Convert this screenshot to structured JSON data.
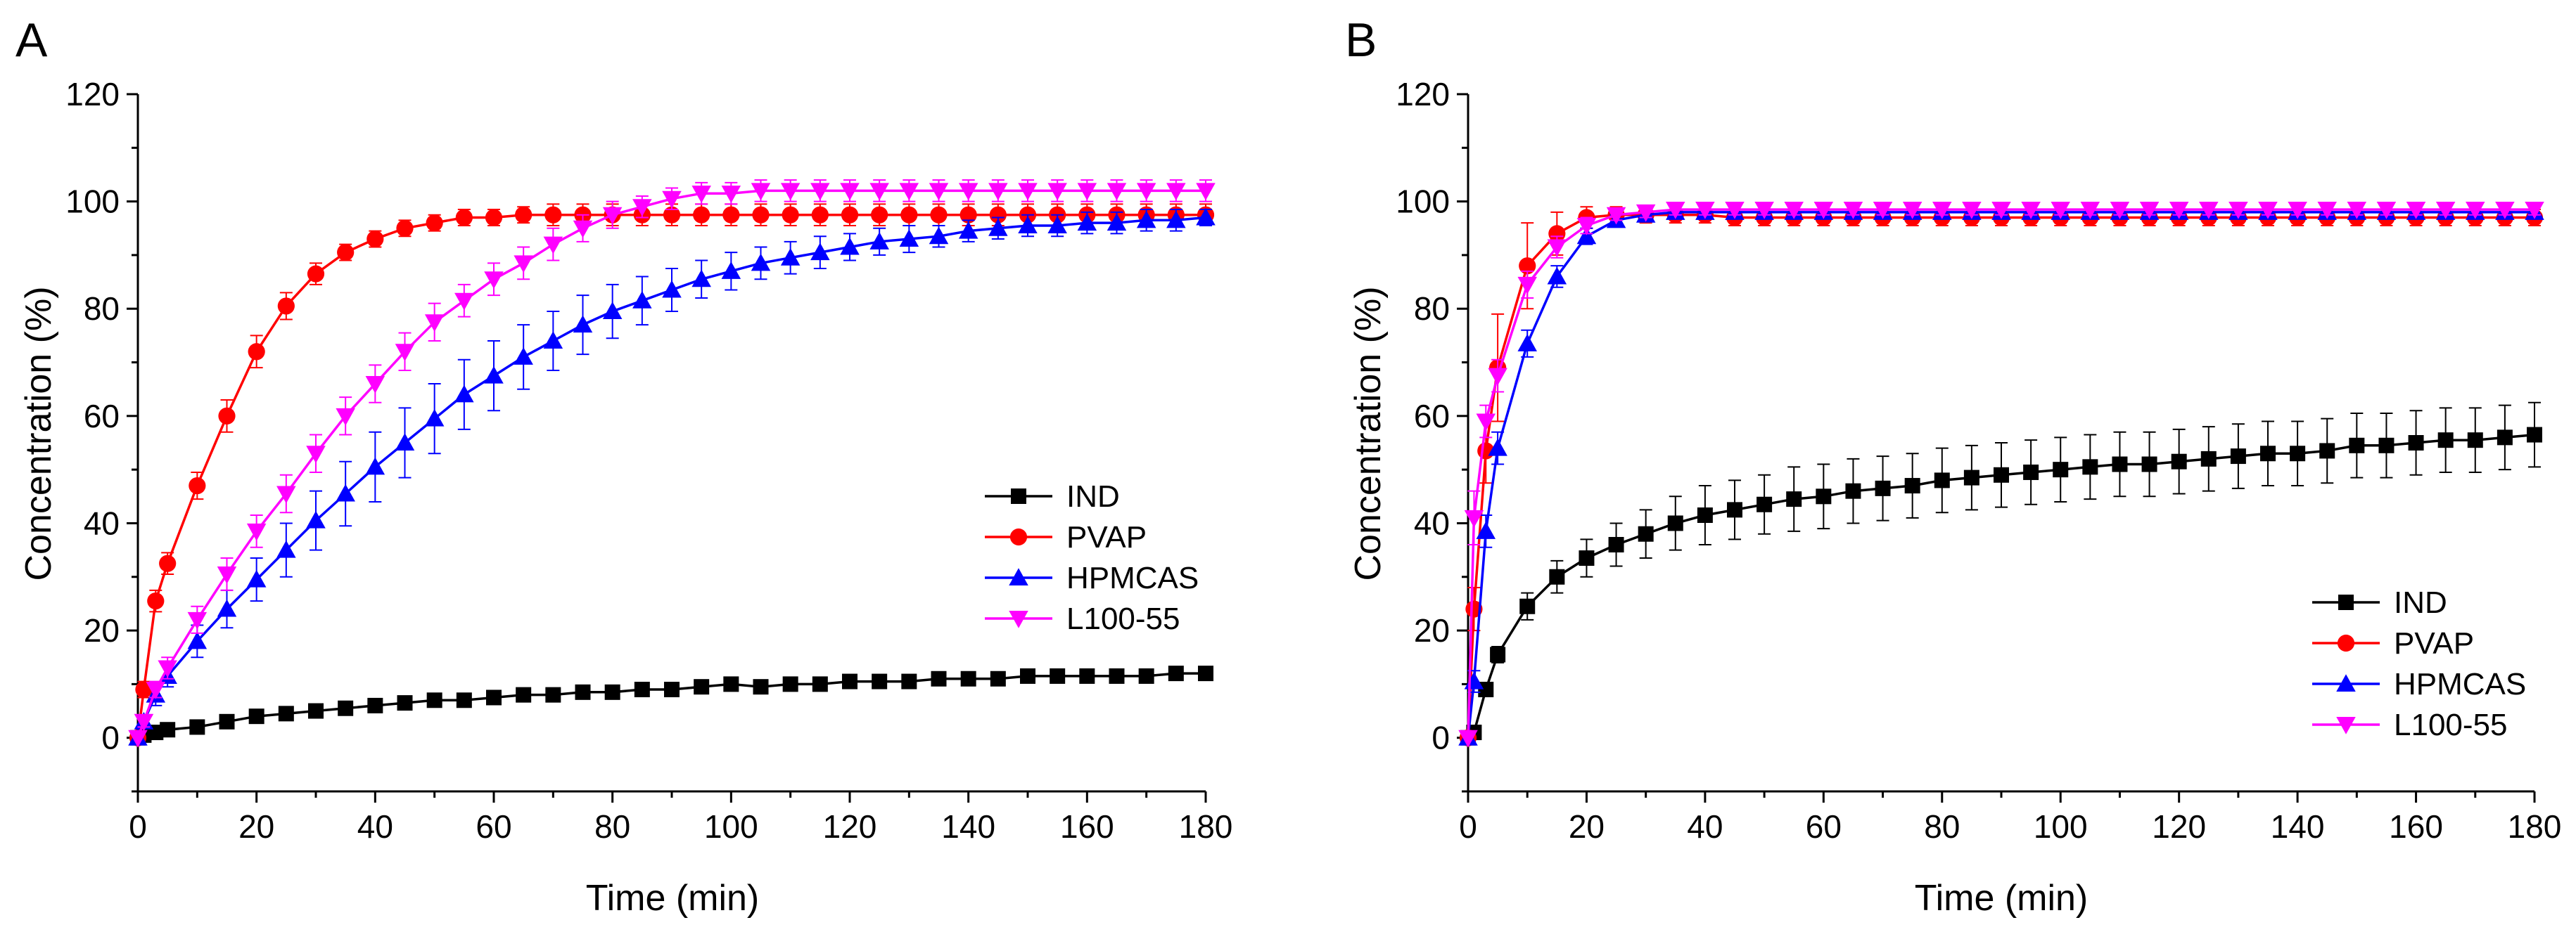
{
  "chart_data": [
    {
      "type": "line",
      "panel": "A",
      "title": "",
      "xlabel": "Time (min)",
      "ylabel": "Concentration (%)",
      "xlim": [
        0,
        180
      ],
      "ylim": [
        -10,
        120
      ],
      "xticks": [
        0,
        20,
        40,
        60,
        80,
        100,
        120,
        140,
        160,
        180
      ],
      "xtick_labels": [
        "0",
        "20",
        "40",
        "60",
        "80",
        "100",
        "120",
        "140",
        "160",
        "180"
      ],
      "yticks": [
        0,
        20,
        40,
        60,
        80,
        100,
        120
      ],
      "ytick_labels": [
        "0",
        "20",
        "40",
        "60",
        "80",
        "100",
        "120"
      ],
      "grid": false,
      "legend_position": "lower-right",
      "series": [
        {
          "name": "IND",
          "color": "#000000",
          "marker": "square",
          "x": [
            0,
            1,
            3,
            5,
            10,
            15,
            20,
            25,
            30,
            35,
            40,
            45,
            50,
            55,
            60,
            65,
            70,
            75,
            80,
            85,
            90,
            95,
            100,
            105,
            110,
            115,
            120,
            125,
            130,
            135,
            140,
            145,
            150,
            155,
            160,
            165,
            170,
            175,
            180
          ],
          "y": [
            0,
            0.5,
            1,
            1.5,
            2,
            3,
            4,
            4.5,
            5,
            5.5,
            6,
            6.5,
            7,
            7,
            7.5,
            8,
            8,
            8.5,
            8.5,
            9,
            9,
            9.5,
            10,
            9.5,
            10,
            10,
            10.5,
            10.5,
            10.5,
            11,
            11,
            11,
            11.5,
            11.5,
            11.5,
            11.5,
            11.5,
            12,
            12
          ],
          "err": [
            0,
            0.3,
            0.4,
            0.5,
            0.5,
            0.6,
            0.6,
            0.6,
            0.7,
            0.7,
            0.7,
            0.7,
            0.7,
            0.7,
            0.7,
            0.8,
            0.8,
            0.8,
            0.8,
            0.8,
            0.8,
            0.8,
            0.8,
            0.8,
            0.8,
            0.8,
            0.8,
            0.8,
            0.8,
            0.8,
            0.8,
            0.8,
            0.8,
            0.8,
            0.8,
            0.8,
            0.8,
            0.8,
            0.8
          ]
        },
        {
          "name": "PVAP",
          "color": "#ff0000",
          "marker": "circle",
          "x": [
            0,
            1,
            3,
            5,
            10,
            15,
            20,
            25,
            30,
            35,
            40,
            45,
            50,
            55,
            60,
            65,
            70,
            75,
            80,
            85,
            90,
            95,
            100,
            105,
            110,
            115,
            120,
            125,
            130,
            135,
            140,
            145,
            150,
            155,
            160,
            165,
            170,
            175,
            180
          ],
          "y": [
            0,
            9,
            25.5,
            32.5,
            47,
            60,
            72,
            80.5,
            86.5,
            90.5,
            93,
            95,
            96,
            97,
            97,
            97.5,
            97.5,
            97.5,
            97.5,
            97.5,
            97.5,
            97.5,
            97.5,
            97.5,
            97.5,
            97.5,
            97.5,
            97.5,
            97.5,
            97.5,
            97.5,
            97.5,
            97.5,
            97.5,
            97.5,
            97.5,
            97.5,
            97.5,
            97.5
          ],
          "err": [
            0,
            1.5,
            2,
            2,
            2.5,
            3,
            3,
            2.5,
            2,
            1.5,
            1.5,
            1.5,
            1.5,
            1.5,
            1.5,
            1.5,
            2,
            2,
            2,
            2,
            2,
            2,
            2,
            2,
            2,
            2,
            2,
            2,
            2,
            2,
            2,
            2,
            2,
            2,
            2,
            2,
            2,
            2,
            2
          ]
        },
        {
          "name": "HPMCAS",
          "color": "#0000ff",
          "marker": "triangle-up",
          "x": [
            0,
            1,
            3,
            5,
            10,
            15,
            20,
            25,
            30,
            35,
            40,
            45,
            50,
            55,
            60,
            65,
            70,
            75,
            80,
            85,
            90,
            95,
            100,
            105,
            110,
            115,
            120,
            125,
            130,
            135,
            140,
            145,
            150,
            155,
            160,
            165,
            170,
            175,
            180
          ],
          "y": [
            0,
            3,
            8,
            11.5,
            18,
            24,
            29.5,
            35,
            40.5,
            45.5,
            50.5,
            55,
            59.5,
            64,
            67.5,
            71,
            74,
            77,
            79.5,
            81.5,
            83.5,
            85.5,
            87,
            88.5,
            89.5,
            90.5,
            91.5,
            92.5,
            93,
            93.5,
            94.5,
            95,
            95.5,
            95.5,
            96,
            96,
            96.5,
            96.5,
            97
          ],
          "err": [
            0,
            1,
            2,
            2,
            3,
            3.5,
            4,
            5,
            5.5,
            6,
            6.5,
            6.5,
            6.5,
            6.5,
            6.5,
            6,
            5.5,
            5.5,
            5,
            4.5,
            4,
            3.5,
            3.5,
            3,
            3,
            3,
            2.5,
            2.5,
            2.5,
            2,
            2,
            2,
            2,
            2,
            2,
            2,
            2,
            2,
            1.5
          ]
        },
        {
          "name": "L100-55",
          "color": "#ff00ff",
          "marker": "triangle-down",
          "x": [
            0,
            1,
            3,
            5,
            10,
            15,
            20,
            25,
            30,
            35,
            40,
            45,
            50,
            55,
            60,
            65,
            70,
            75,
            80,
            85,
            90,
            95,
            100,
            105,
            110,
            115,
            120,
            125,
            130,
            135,
            140,
            145,
            150,
            155,
            160,
            165,
            170,
            175,
            180
          ],
          "y": [
            0,
            3,
            9,
            13,
            22,
            30.5,
            38.5,
            45.5,
            53,
            60,
            66,
            72,
            77.5,
            81.5,
            85.5,
            88.5,
            92,
            95,
            97.5,
            99,
            100.5,
            101.5,
            101.5,
            102,
            102,
            102,
            102,
            102,
            102,
            102,
            102,
            102,
            102,
            102,
            102,
            102,
            102,
            102,
            102
          ],
          "err": [
            0,
            1,
            1.5,
            2,
            2.5,
            3,
            3,
            3.5,
            3.5,
            3.5,
            3.5,
            3.5,
            3.5,
            3,
            3,
            3,
            3,
            2.5,
            2.5,
            2,
            2,
            2,
            2,
            2,
            2,
            2,
            2,
            2,
            2,
            2,
            2,
            2,
            2,
            2,
            2,
            2,
            2,
            2,
            2
          ]
        }
      ]
    },
    {
      "type": "line",
      "panel": "B",
      "title": "",
      "xlabel": "Time (min)",
      "ylabel": "Concentration (%)",
      "xlim": [
        0,
        180
      ],
      "ylim": [
        -10,
        120
      ],
      "xticks": [
        0,
        20,
        40,
        60,
        80,
        100,
        120,
        140,
        160,
        180
      ],
      "xtick_labels": [
        "0",
        "20",
        "40",
        "60",
        "80",
        "100",
        "120",
        "140",
        "160",
        "180"
      ],
      "yticks": [
        0,
        20,
        40,
        60,
        80,
        100,
        120
      ],
      "ytick_labels": [
        "0",
        "20",
        "40",
        "60",
        "80",
        "100",
        "120"
      ],
      "grid": false,
      "legend_position": "lower-right",
      "series": [
        {
          "name": "IND",
          "color": "#000000",
          "marker": "square",
          "x": [
            0,
            1,
            3,
            5,
            10,
            15,
            20,
            25,
            30,
            35,
            40,
            45,
            50,
            55,
            60,
            65,
            70,
            75,
            80,
            85,
            90,
            95,
            100,
            105,
            110,
            115,
            120,
            125,
            130,
            135,
            140,
            145,
            150,
            155,
            160,
            165,
            170,
            175,
            180
          ],
          "y": [
            0,
            1,
            9,
            15.5,
            24.5,
            30,
            33.5,
            36,
            38,
            40,
            41.5,
            42.5,
            43.5,
            44.5,
            45,
            46,
            46.5,
            47,
            48,
            48.5,
            49,
            49.5,
            50,
            50.5,
            51,
            51,
            51.5,
            52,
            52.5,
            53,
            53,
            53.5,
            54.5,
            54.5,
            55,
            55.5,
            55.5,
            56,
            56.5
          ],
          "err": [
            0,
            0.5,
            1,
            1.5,
            2.5,
            3,
            3.5,
            4,
            4.5,
            5,
            5.5,
            5.5,
            5.5,
            6,
            6,
            6,
            6,
            6,
            6,
            6,
            6,
            6,
            6,
            6,
            6,
            6,
            6,
            6,
            6,
            6,
            6,
            6,
            6,
            6,
            6,
            6,
            6,
            6,
            6
          ]
        },
        {
          "name": "PVAP",
          "color": "#ff0000",
          "marker": "circle",
          "x": [
            0,
            1,
            3,
            5,
            10,
            15,
            20,
            25,
            30,
            35,
            40,
            45,
            50,
            55,
            60,
            65,
            70,
            75,
            80,
            85,
            90,
            95,
            100,
            105,
            110,
            115,
            120,
            125,
            130,
            135,
            140,
            145,
            150,
            155,
            160,
            165,
            170,
            175,
            180
          ],
          "y": [
            0,
            24,
            53.5,
            69,
            88,
            94,
            97,
            97.5,
            97.5,
            97.5,
            97.5,
            97,
            97,
            97,
            97,
            97,
            97,
            97,
            97,
            97,
            97,
            97,
            97,
            97,
            97,
            97,
            97,
            97,
            97,
            97,
            97,
            97,
            97,
            97,
            97,
            97,
            97,
            97,
            97
          ],
          "err": [
            0,
            4,
            6,
            10,
            8,
            4,
            2,
            1.5,
            1.5,
            1.5,
            1.5,
            1.5,
            1.5,
            1.5,
            1.5,
            1.5,
            1.5,
            1.5,
            1.5,
            1.5,
            1.5,
            1.5,
            1.5,
            1.5,
            1.5,
            1.5,
            1.5,
            1.5,
            1.5,
            1.5,
            1.5,
            1.5,
            1.5,
            1.5,
            1.5,
            1.5,
            1.5,
            1.5,
            1.5
          ]
        },
        {
          "name": "HPMCAS",
          "color": "#0000ff",
          "marker": "triangle-up",
          "x": [
            0,
            1,
            3,
            5,
            10,
            15,
            20,
            25,
            30,
            35,
            40,
            45,
            50,
            55,
            60,
            65,
            70,
            75,
            80,
            85,
            90,
            95,
            100,
            105,
            110,
            115,
            120,
            125,
            130,
            135,
            140,
            145,
            150,
            155,
            160,
            165,
            170,
            175,
            180
          ],
          "y": [
            0,
            10.5,
            38.5,
            54,
            73.5,
            86,
            93.5,
            96.5,
            97.5,
            98,
            98,
            98,
            98,
            98,
            98,
            98,
            98,
            98,
            98,
            98,
            98,
            98,
            98,
            98,
            98,
            98,
            98,
            98,
            98,
            98,
            98,
            98,
            98,
            98,
            98,
            98,
            98,
            98,
            98
          ],
          "err": [
            0,
            2,
            3,
            3,
            2.5,
            2,
            1.5,
            1,
            1,
            1,
            1,
            1,
            1,
            1,
            1,
            1,
            1,
            1,
            1,
            1,
            1,
            1,
            1,
            1,
            1,
            1,
            1,
            1,
            1,
            1,
            1,
            1,
            1,
            1,
            1,
            1,
            1,
            1,
            1
          ]
        },
        {
          "name": "L100-55",
          "color": "#ff00ff",
          "marker": "triangle-down",
          "x": [
            0,
            1,
            3,
            5,
            10,
            15,
            20,
            25,
            30,
            35,
            40,
            45,
            50,
            55,
            60,
            65,
            70,
            75,
            80,
            85,
            90,
            95,
            100,
            105,
            110,
            115,
            120,
            125,
            130,
            135,
            140,
            145,
            150,
            155,
            160,
            165,
            170,
            175,
            180
          ],
          "y": [
            0,
            41,
            59,
            67.5,
            84.5,
            91.5,
            95.5,
            97.5,
            98,
            98.5,
            98.5,
            98.5,
            98.5,
            98.5,
            98.5,
            98.5,
            98.5,
            98.5,
            98.5,
            98.5,
            98.5,
            98.5,
            98.5,
            98.5,
            98.5,
            98.5,
            98.5,
            98.5,
            98.5,
            98.5,
            98.5,
            98.5,
            98.5,
            98.5,
            98.5,
            98.5,
            98.5,
            98.5,
            98.5
          ],
          "err": [
            0,
            5,
            3,
            3,
            2.5,
            2,
            1.5,
            1,
            1,
            1,
            1,
            1,
            1,
            1,
            1,
            1,
            1,
            1,
            1,
            1,
            1,
            1,
            1,
            1,
            1,
            1,
            1,
            1,
            1,
            1,
            1,
            1,
            1,
            1,
            1,
            1,
            1,
            1,
            1
          ]
        }
      ]
    }
  ]
}
